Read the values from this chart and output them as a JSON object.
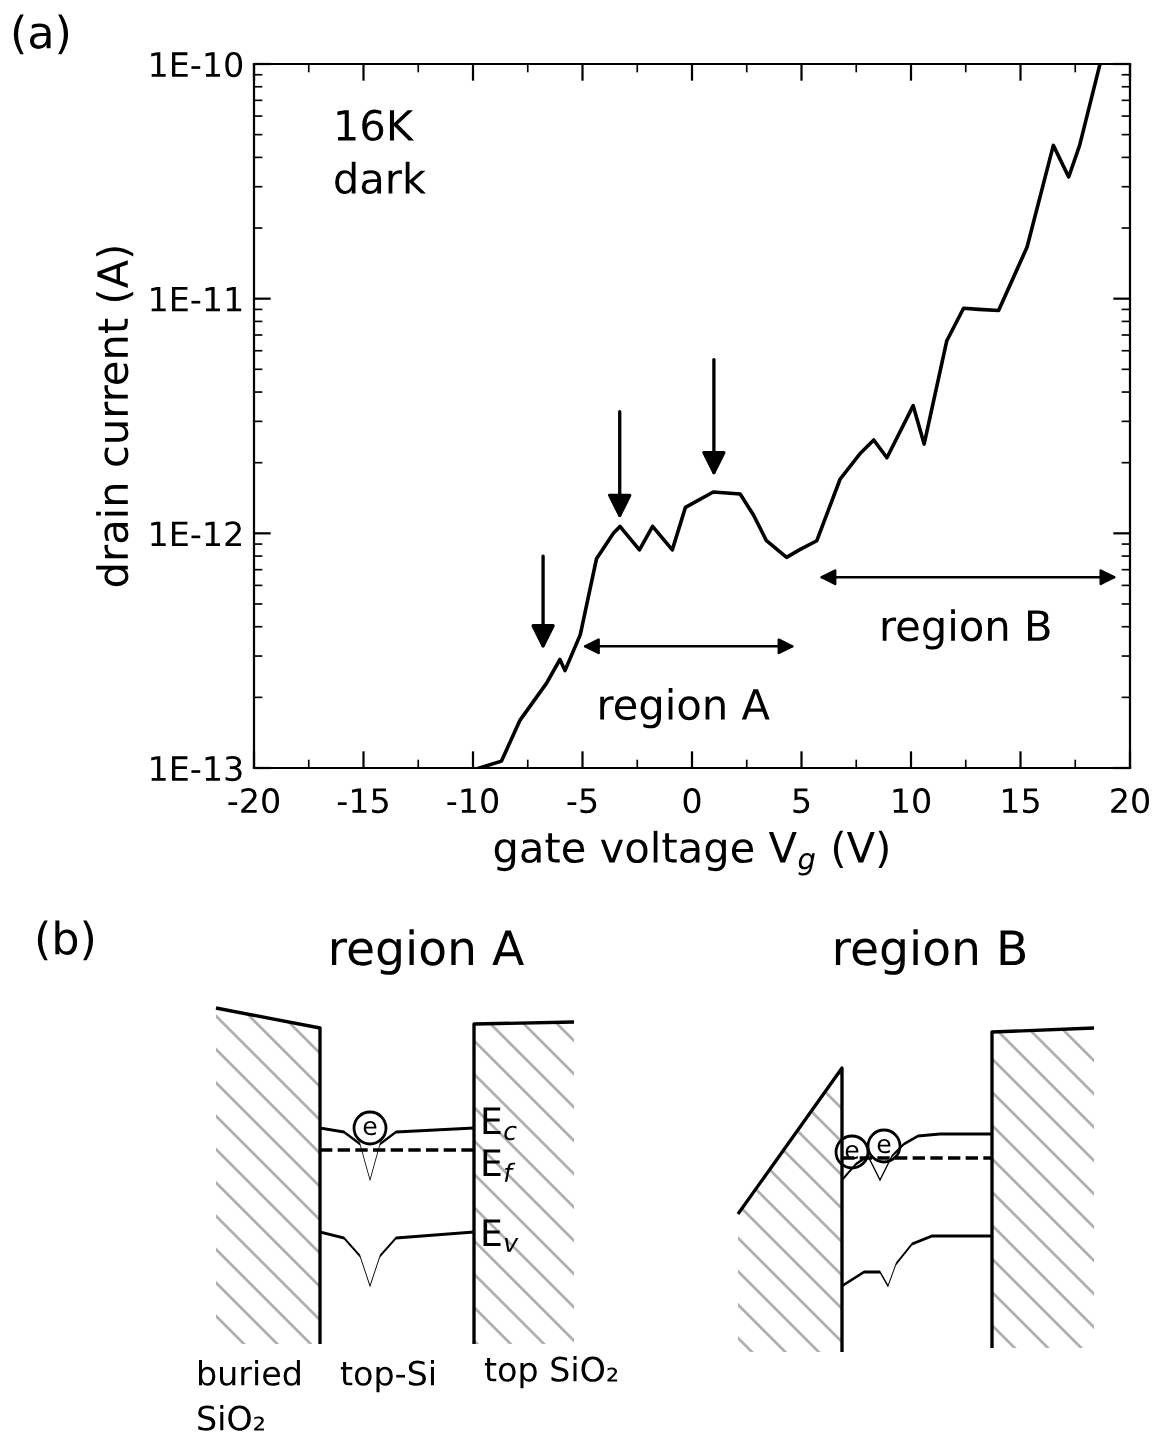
{
  "chart_data": {
    "type": "line",
    "xlabel": "gate voltage V$_{g}$ (V)",
    "ylabel": "drain current (A)",
    "log": "y",
    "xlim": [
      -20,
      20
    ],
    "xticks": [
      -20,
      -15,
      -10,
      -5,
      0,
      5,
      10,
      15,
      20
    ],
    "ylim": [
      1e-13,
      1e-10
    ],
    "yticks": [
      {
        "value": 1e-13,
        "label": "1E-13"
      },
      {
        "value": 1e-12,
        "label": "1E-12"
      },
      {
        "value": 1e-11,
        "label": "1E-11"
      },
      {
        "value": 1e-10,
        "label": "1E-10"
      }
    ],
    "grid": false,
    "legend": false,
    "marker": "none",
    "line_style": "solid",
    "series": [
      {
        "color": "#000000",
        "x": [
          -9.7,
          -8.7,
          -7.85,
          -6.64,
          -6.03,
          -5.8,
          -5.1,
          -4.36,
          -3.59,
          -3.29,
          -2.4,
          -1.8,
          -0.9,
          -0.3,
          0.97,
          2.2,
          2.8,
          3.4,
          4.32,
          4.9,
          5.7,
          6.76,
          7.7,
          8.3,
          8.9,
          10.1,
          10.6,
          11.63,
          12.4,
          13.1,
          14.0,
          15.3,
          16.5,
          17.2,
          17.7,
          18.63
        ],
        "values": [
          1e-13,
          1.07e-13,
          1.6e-13,
          2.3e-13,
          2.9e-13,
          2.6e-13,
          3.7e-13,
          7.8e-13,
          1e-12,
          1.07e-12,
          8.5e-13,
          1.07e-12,
          8.5e-13,
          1.29e-12,
          1.5e-12,
          1.47e-12,
          1.2e-12,
          9.3e-13,
          7.9e-13,
          8.5e-13,
          9.3e-13,
          1.7e-12,
          2.2e-12,
          2.5e-12,
          2.1e-12,
          3.5e-12,
          2.4e-12,
          6.6e-12,
          9.1e-12,
          9e-12,
          8.9e-12,
          1.66e-11,
          4.5e-11,
          3.3e-11,
          4.5e-11,
          1e-10
        ]
      }
    ],
    "annotations": [
      "(a)",
      "16K\ndark",
      "region A",
      "region B",
      "(b)",
      "region A",
      "region B",
      "E$_{c}$",
      "E$_{f}$",
      "E$_{v}$",
      "buried\nSiO₂",
      "top-Si",
      "top SiO₂",
      "e",
      "e",
      "e"
    ]
  }
}
